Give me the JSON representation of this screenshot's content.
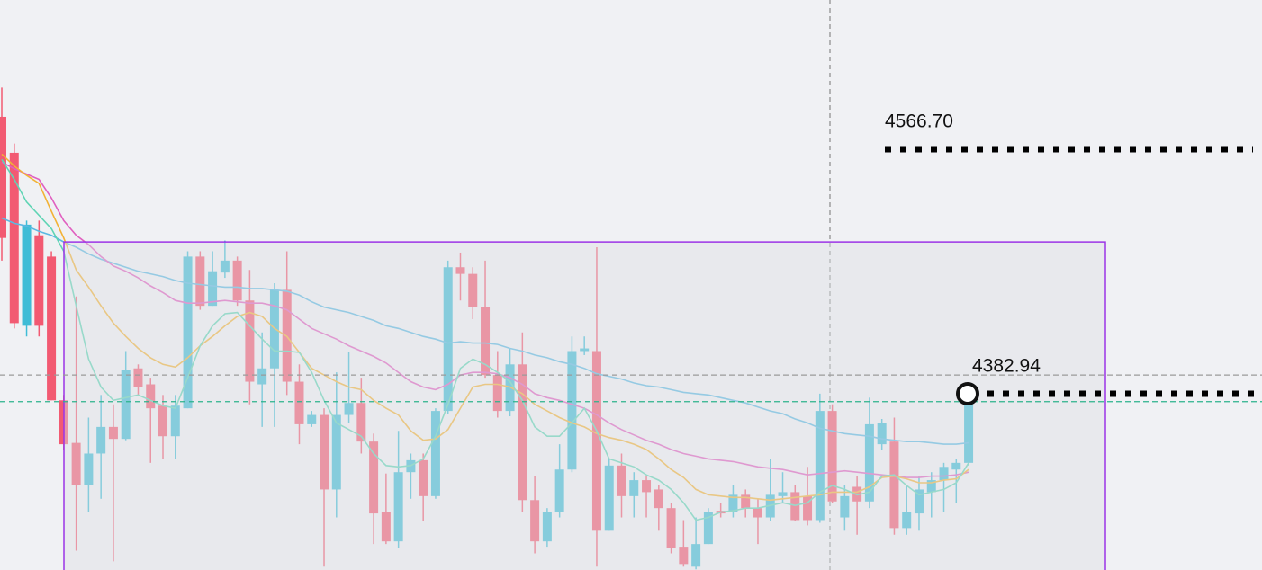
{
  "chart_data": {
    "type": "candlestick",
    "ylim": [
      4250.5,
      4678.8
    ],
    "up_color": "#3fbcd6",
    "down_color": "#f25a72",
    "candles": {
      "open": [
        4591,
        4564,
        4434,
        4502,
        4486,
        4378,
        4346,
        4314,
        4338,
        4358,
        4349,
        4402,
        4390,
        4374,
        4351,
        4372,
        4486,
        4449,
        4474,
        4483,
        4453,
        4390,
        4402,
        4461,
        4392,
        4360,
        4367,
        4311,
        4367,
        4376,
        4347,
        4294,
        4272,
        4324,
        4333,
        4306,
        4370,
        4478,
        4473,
        4448,
        4397,
        4370,
        4405,
        4303,
        4272,
        4294,
        4326,
        4415,
        4415,
        4280,
        4329,
        4306,
        4318,
        4311,
        4297,
        4268,
        4253,
        4270,
        4295,
        4294,
        4307,
        4297,
        4290,
        4306,
        4309,
        4306,
        4288,
        4370,
        4290,
        4313,
        4302,
        4345,
        4347,
        4282,
        4293,
        4309,
        4318,
        4326,
        4331
      ],
      "high": [
        4613,
        4571,
        4513,
        4513,
        4490,
        4382,
        4456,
        4365,
        4382,
        4375,
        4415,
        4405,
        4395,
        4382,
        4382,
        4490,
        4490,
        4490,
        4498,
        4486,
        4476,
        4429,
        4466,
        4490,
        4405,
        4370,
        4372,
        4399,
        4414,
        4395,
        4353,
        4323,
        4355,
        4338,
        4338,
        4372,
        4483,
        4489,
        4478,
        4483,
        4415,
        4417,
        4429,
        4321,
        4297,
        4345,
        4426,
        4426,
        4493,
        4334,
        4338,
        4324,
        4321,
        4314,
        4301,
        4288,
        4290,
        4297,
        4301,
        4314,
        4311,
        4304,
        4334,
        4324,
        4314,
        4328,
        4383,
        4375,
        4314,
        4321,
        4380,
        4364,
        4365,
        4314,
        4321,
        4324,
        4331,
        4334,
        4382.94
      ],
      "low": [
        4483,
        4432,
        4426,
        4426,
        4378,
        4341,
        4265,
        4294,
        4304,
        4257,
        4348,
        4382,
        4331,
        4334,
        4334,
        4372,
        4446,
        4449,
        4470,
        4449,
        4375,
        4358,
        4358,
        4382,
        4345,
        4358,
        4253,
        4290,
        4361,
        4338,
        4270,
        4270,
        4267,
        4304,
        4287,
        4304,
        4368,
        4453,
        4439,
        4395,
        4365,
        4366,
        4294,
        4263,
        4268,
        4290,
        4324,
        4412,
        4253,
        4280,
        4290,
        4290,
        4290,
        4280,
        4263,
        4253,
        4251,
        4270,
        4290,
        4290,
        4290,
        4270,
        4287,
        4301,
        4287,
        4284,
        4286,
        4301,
        4280,
        4277,
        4297,
        4341,
        4277,
        4277,
        4280,
        4290,
        4294,
        4301,
        4329
      ],
      "close": [
        4500,
        4436,
        4510,
        4434,
        4378,
        4345,
        4314,
        4338,
        4358,
        4349,
        4401,
        4388,
        4372,
        4351,
        4374,
        4486,
        4449,
        4475,
        4483,
        4453,
        4392,
        4402,
        4461,
        4392,
        4360,
        4367,
        4311,
        4367,
        4376,
        4347,
        4293,
        4272,
        4324,
        4333,
        4306,
        4370,
        4478,
        4473,
        4448,
        4397,
        4370,
        4405,
        4303,
        4272,
        4294,
        4326,
        4415,
        4417,
        4280,
        4329,
        4306,
        4318,
        4309,
        4297,
        4267,
        4255,
        4270,
        4294,
        4293,
        4307,
        4297,
        4290,
        4307,
        4309,
        4288,
        4288,
        4370,
        4302,
        4306,
        4302,
        4360,
        4361,
        4282,
        4294,
        4311,
        4318,
        4328,
        4331,
        4382.94
      ]
    },
    "series": [
      {
        "color": "#5ab8e2",
        "values": [
          4515,
          4511,
          4509,
          4505,
          4502,
          4497,
          4493,
          4488,
          4484,
          4481,
          4478,
          4475,
          4473,
          4471,
          4468,
          4466,
          4465,
          4464,
          4463,
          4463,
          4462,
          4462,
          4461,
          4460,
          4457,
          4452,
          4448,
          4446,
          4444,
          4441,
          4438,
          4434,
          4432,
          4429,
          4426,
          4424,
          4421,
          4422,
          4421,
          4421,
          4420,
          4417,
          4415,
          4412,
          4410,
          4407,
          4405,
          4402,
          4398,
          4396,
          4394,
          4391,
          4389,
          4388,
          4386,
          4384,
          4383,
          4382,
          4380,
          4378,
          4376,
          4373,
          4370,
          4368,
          4364,
          4361,
          4357,
          4355,
          4353,
          4352,
          4351,
          4349,
          4348,
          4347,
          4347,
          4346,
          4345,
          4345,
          4346
        ]
      },
      {
        "color": "#e060c0",
        "values": [
          4557,
          4552,
          4548,
          4544,
          4530,
          4513,
          4502,
          4495,
          4486,
          4479,
          4475,
          4470,
          4464,
          4459,
          4453,
          4451,
          4451,
          4452,
          4453,
          4452,
          4451,
          4451,
          4449,
          4446,
          4439,
          4432,
          4428,
          4424,
          4419,
          4415,
          4411,
          4406,
          4399,
          4392,
          4388,
          4386,
          4390,
          4397,
          4399,
          4399,
          4398,
          4395,
          4390,
          4383,
          4380,
          4378,
          4375,
          4372,
          4367,
          4361,
          4356,
          4352,
          4348,
          4345,
          4341,
          4338,
          4336,
          4334,
          4333,
          4332,
          4330,
          4328,
          4327,
          4326,
          4324,
          4322,
          4323,
          4324,
          4325,
          4324,
          4323,
          4322,
          4321,
          4320,
          4320,
          4321,
          4321,
          4322,
          4324
        ]
      },
      {
        "color": "#f2b236",
        "values": [
          4563,
          4554,
          4547,
          4541,
          4520,
          4500,
          4476,
          4463,
          4449,
          4436,
          4426,
          4417,
          4410,
          4405,
          4403,
          4410,
          4419,
          4426,
          4434,
          4441,
          4444,
          4441,
          4432,
          4426,
          4414,
          4402,
          4397,
          4392,
          4388,
          4386,
          4378,
          4372,
          4367,
          4355,
          4348,
          4349,
          4356,
          4372,
          4388,
          4390,
          4390,
          4388,
          4383,
          4375,
          4370,
          4365,
          4361,
          4358,
          4353,
          4350,
          4348,
          4345,
          4341,
          4334,
          4326,
          4320,
          4311,
          4307,
          4306,
          4305,
          4305,
          4304,
          4303,
          4304,
          4305,
          4306,
          4307,
          4309,
          4309,
          4309,
          4313,
          4320,
          4321,
          4319,
          4316,
          4316,
          4318,
          4319,
          4326
        ]
      },
      {
        "color": "#5fd4b4",
        "values": [
          4559,
          4544,
          4527,
          4517,
          4507,
          4490,
          4449,
          4409,
          4388,
          4378,
          4380,
          4382,
          4378,
          4374,
          4372,
          4395,
          4419,
          4434,
          4443,
          4444,
          4434,
          4424,
          4415,
          4415,
          4414,
          4399,
          4378,
          4361,
          4356,
          4351,
          4338,
          4329,
          4328,
          4329,
          4334,
          4351,
          4375,
          4402,
          4409,
          4405,
          4399,
          4392,
          4378,
          4358,
          4351,
          4351,
          4361,
          4372,
          4355,
          4334,
          4331,
          4328,
          4322,
          4318,
          4311,
          4301,
          4288,
          4290,
          4294,
          4295,
          4297,
          4297,
          4299,
          4301,
          4299,
          4301,
          4309,
          4314,
          4311,
          4307,
          4309,
          4321,
          4322,
          4314,
          4307,
          4309,
          4311,
          4316,
          4331
        ]
      }
    ],
    "range_box": {
      "top": 4497,
      "color": "#9b34e6"
    },
    "reference_lines": [
      {
        "value": 4397,
        "color": "#9a9a9a"
      },
      {
        "value": 4377,
        "color": "#2cb38c"
      }
    ],
    "price_levels": [
      {
        "value": 4566.7,
        "label": "4566.70"
      },
      {
        "value": 4382.94,
        "label": "4382.94"
      }
    ]
  }
}
